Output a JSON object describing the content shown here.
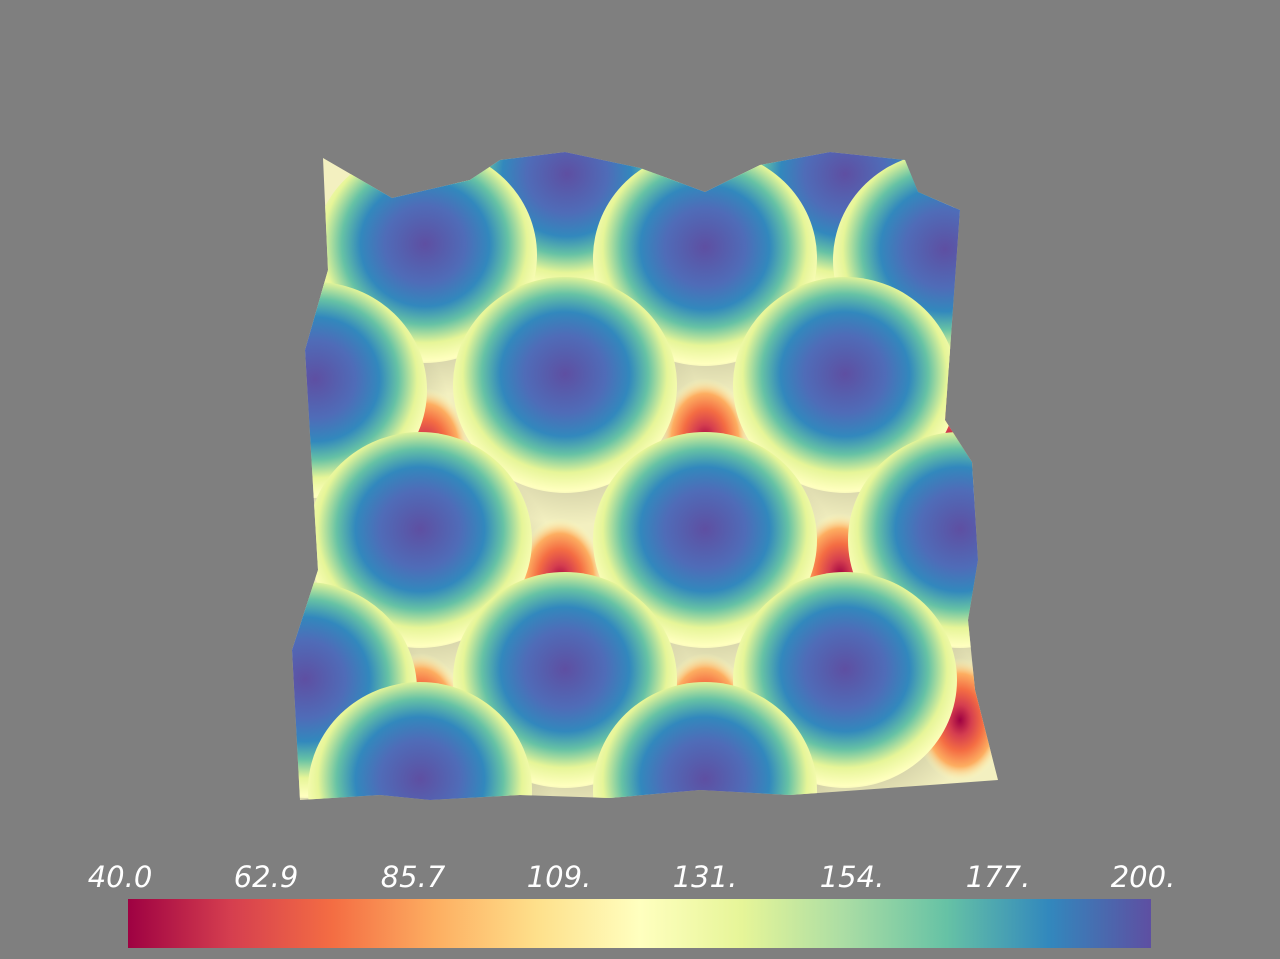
{
  "scene": {
    "background_color": "#7f7f7f"
  },
  "surface": {
    "peaks_rows": [
      [
        1,
        1,
        1
      ],
      [
        1,
        1,
        1
      ],
      [
        1,
        1,
        1
      ],
      [
        1,
        1,
        1
      ]
    ]
  },
  "scalar_bar": {
    "range": [
      40.0,
      200.0
    ],
    "colormap": "Spectral",
    "colors": [
      "#9e0142",
      "#d53e4f",
      "#f46d43",
      "#fdae61",
      "#fee08b",
      "#ffffbf",
      "#e6f598",
      "#abdda4",
      "#66c2a5",
      "#3288bd",
      "#5e4fa2"
    ],
    "tick_labels": [
      "40.0",
      "62.9",
      "85.7",
      "109.",
      "131.",
      "154.",
      "177.",
      "200."
    ]
  }
}
